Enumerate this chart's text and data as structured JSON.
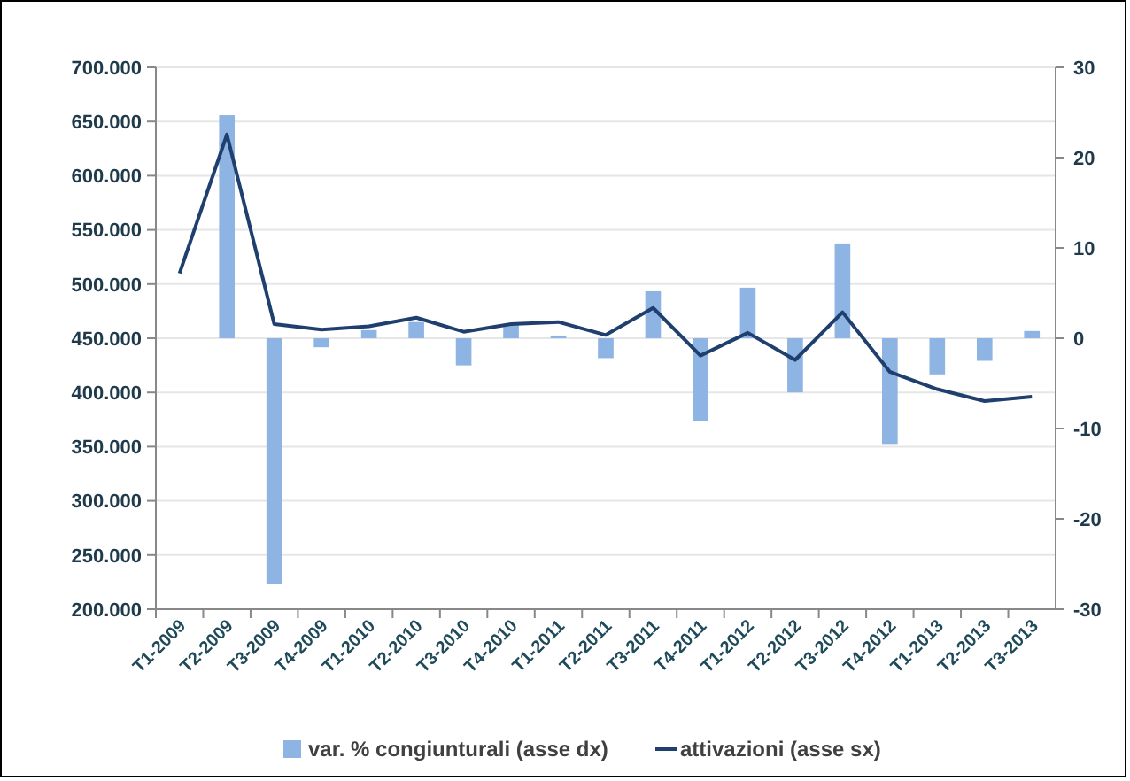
{
  "chart_data": {
    "type": "bar",
    "categories": [
      "T1-2009",
      "T2-2009",
      "T3-2009",
      "T4-2009",
      "T1-2010",
      "T2-2010",
      "T3-2010",
      "T4-2010",
      "T1-2011",
      "T2-2011",
      "T3-2011",
      "T4-2011",
      "T1-2012",
      "T2-2012",
      "T3-2012",
      "T4-2012",
      "T1-2013",
      "T2-2013",
      "T3-2013"
    ],
    "series": [
      {
        "name": "var. % congiunturali (asse dx)",
        "axis": "y2",
        "color": "#8db4e2",
        "values": [
          null,
          24.7,
          -27.2,
          -1,
          0.9,
          1.8,
          -3,
          1.5,
          0.3,
          -2.2,
          5.2,
          -9.2,
          5.6,
          -6,
          10.5,
          -11.7,
          -4,
          -2.5,
          0.8
        ]
      },
      {
        "name": "attivazioni (asse sx)",
        "type": "line",
        "color": "#1f3f6e",
        "values": [
          510000,
          638000,
          463000,
          458000,
          461000,
          469000,
          456000,
          463000,
          465000,
          453000,
          478000,
          434000,
          455000,
          430000,
          474000,
          419000,
          403000,
          392000,
          396000
        ]
      }
    ],
    "ylim": [
      200000,
      700000
    ],
    "yticks": [
      {
        "value": 200000,
        "label": "200.000"
      },
      {
        "value": 250000,
        "label": "250.000"
      },
      {
        "value": 300000,
        "label": "300.000"
      },
      {
        "value": 350000,
        "label": "350.000"
      },
      {
        "value": 400000,
        "label": "400.000"
      },
      {
        "value": 450000,
        "label": "450.000"
      },
      {
        "value": 500000,
        "label": "500.000"
      },
      {
        "value": 550000,
        "label": "550.000"
      },
      {
        "value": 600000,
        "label": "600.000"
      },
      {
        "value": 650000,
        "label": "650.000"
      },
      {
        "value": 700000,
        "label": "700.000"
      }
    ],
    "y2lim": [
      -30,
      30
    ],
    "y2ticks": [
      -30,
      -20,
      -10,
      0,
      10,
      20,
      30
    ],
    "grid": "y",
    "legend": "bottom",
    "marker": "none"
  }
}
